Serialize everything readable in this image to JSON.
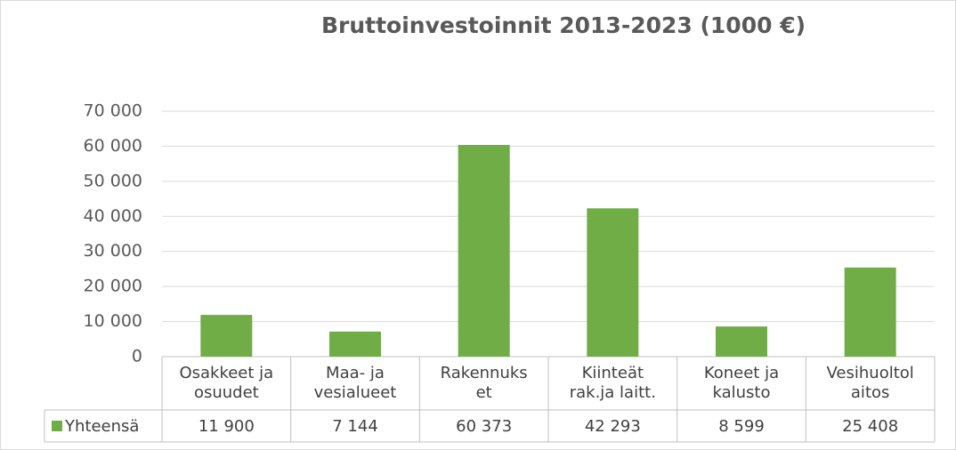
{
  "chart_data": {
    "type": "bar",
    "title": "Bruttoinvestoinnit 2013-2023 (1000 €)",
    "categories": [
      "Osakkeet ja\nosuudet",
      "Maa- ja\nvesialueet",
      "Rakennuks\net",
      "Kiinteät\nrak.ja laitt.",
      "Koneet ja\nkalusto",
      "Vesihuoltol\naitos"
    ],
    "series": [
      {
        "name": "Yhteensä",
        "color": "#70ad47",
        "values": [
          11900,
          7144,
          60373,
          42293,
          8599,
          25408
        ],
        "value_labels": [
          "11 900",
          "7 144",
          "60 373",
          "42 293",
          "8 599",
          "25 408"
        ]
      }
    ],
    "ylim": [
      0,
      70000
    ],
    "yticks": [
      {
        "value": 0,
        "label": "0"
      },
      {
        "value": 10000,
        "label": "10 000"
      },
      {
        "value": 20000,
        "label": "20 000"
      },
      {
        "value": 30000,
        "label": "30 000"
      },
      {
        "value": 40000,
        "label": "40 000"
      },
      {
        "value": 50000,
        "label": "50 000"
      },
      {
        "value": 60000,
        "label": "60 000"
      },
      {
        "value": 70000,
        "label": "70 000"
      }
    ],
    "grid": true
  }
}
